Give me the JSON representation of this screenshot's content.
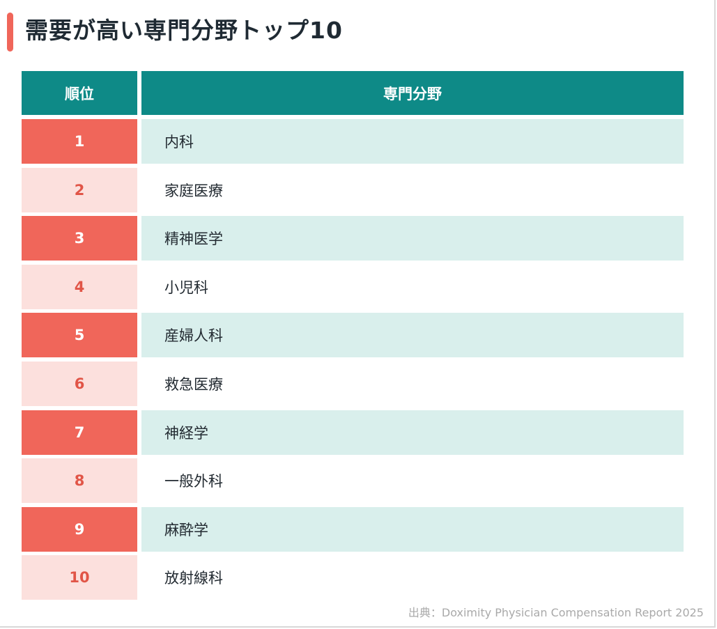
{
  "title": "需要が高い専門分野トップ10",
  "table": {
    "headers": {
      "rank": "順位",
      "field": "専門分野"
    },
    "rows": [
      {
        "rank": "1",
        "field": "内科"
      },
      {
        "rank": "2",
        "field": "家庭医療"
      },
      {
        "rank": "3",
        "field": "精神医学"
      },
      {
        "rank": "4",
        "field": "小児科"
      },
      {
        "rank": "5",
        "field": "産婦人科"
      },
      {
        "rank": "6",
        "field": "救急医療"
      },
      {
        "rank": "7",
        "field": "神経学"
      },
      {
        "rank": "8",
        "field": "一般外科"
      },
      {
        "rank": "9",
        "field": "麻酔学"
      },
      {
        "rank": "10",
        "field": "放射線科"
      }
    ]
  },
  "source": "出典：Doximity Physician Compensation Report 2025",
  "colors": {
    "accent": "#f0665a",
    "header": "#0e8a87",
    "rank_light": "#fce0dd",
    "row_tint": "#d9efec"
  }
}
